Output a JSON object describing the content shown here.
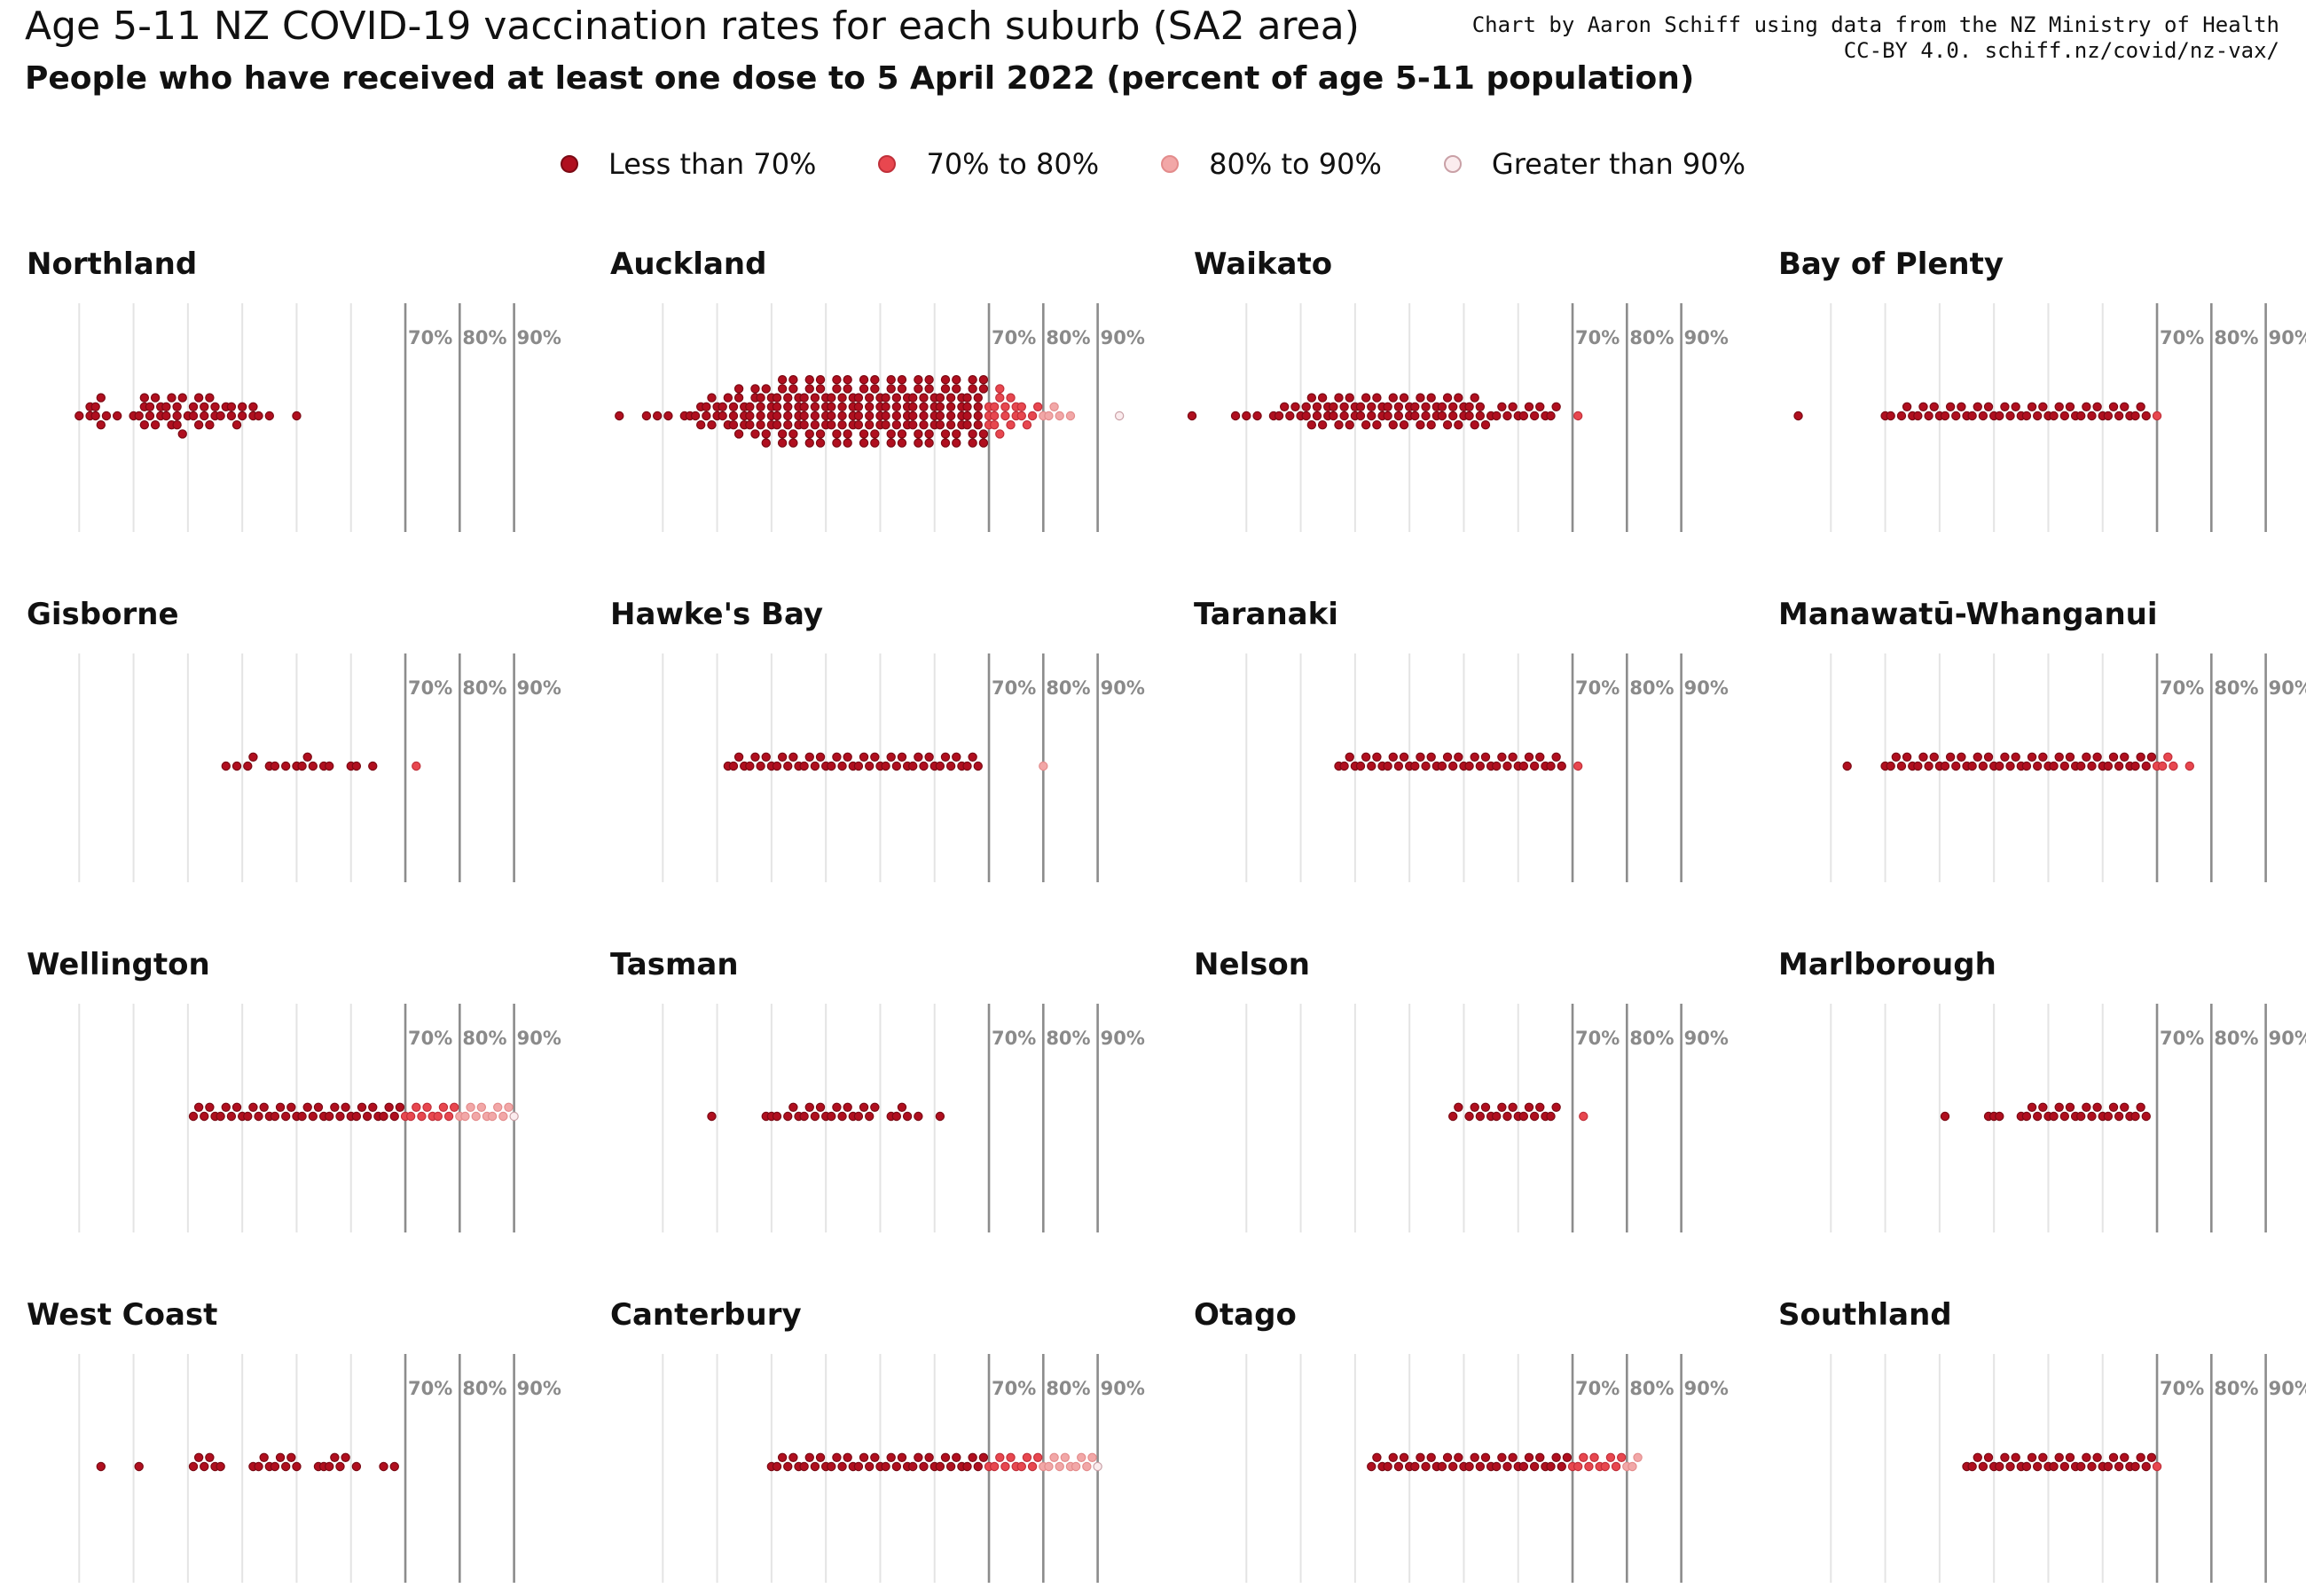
{
  "title": "Age 5-11 NZ COVID-19 vaccination rates for each suburb (SA2 area)",
  "subtitle": "People who have received at least one dose to 5 April 2022 (percent of age 5-11 population)",
  "credit": {
    "line1": "Chart by Aaron Schiff using data from the NZ Ministry of Health",
    "line2": "CC-BY 4.0. schiff.nz/covid/nz-vax/"
  },
  "legend": [
    {
      "label": "Less than 70%",
      "color": "#b00f1f",
      "border": "#7a0a14"
    },
    {
      "label": "70% to 80%",
      "color": "#e8474f",
      "border": "#c0303a"
    },
    {
      "label": "80% to 90%",
      "color": "#f2a7a7",
      "border": "#e38c8c"
    },
    {
      "label": "Greater than 90%",
      "color": "#fbecee",
      "border": "#c9a0a6"
    }
  ],
  "chart_data": {
    "type": "scatter",
    "description_units": "percent of age 5-11 population vaccinated (at least one dose) per SA2 area",
    "reference_lines": [
      70,
      80,
      90
    ],
    "reference_labels": [
      "70%",
      "80%",
      "90%"
    ],
    "xlim": [
      0,
      93
    ],
    "grid": true,
    "facets": [
      {
        "name": "Northland",
        "values": [
          10,
          12,
          12,
          13,
          13,
          14,
          14,
          15,
          17,
          20,
          21,
          22,
          22,
          22,
          23,
          23,
          24,
          24,
          25,
          25,
          26,
          26,
          27,
          27,
          28,
          28,
          28,
          29,
          29,
          30,
          31,
          31,
          32,
          32,
          33,
          33,
          34,
          34,
          35,
          35,
          36,
          37,
          38,
          38,
          39,
          40,
          40,
          42,
          42,
          43,
          45,
          50
        ]
      },
      {
        "name": "Auckland",
        "values": [
          2,
          7,
          9,
          11,
          14,
          15,
          16,
          17,
          17,
          18,
          18,
          19,
          19,
          20,
          20,
          21,
          21,
          22,
          22,
          23,
          23,
          23,
          24,
          24,
          24,
          25,
          25,
          25,
          26,
          26,
          26,
          27,
          27,
          27,
          28,
          28,
          28,
          28,
          29,
          29,
          29,
          30,
          30,
          30,
          30,
          31,
          31,
          31,
          31,
          32,
          32,
          32,
          32,
          33,
          33,
          33,
          33,
          34,
          34,
          34,
          34,
          35,
          35,
          35,
          35,
          36,
          36,
          36,
          36,
          37,
          37,
          37,
          37,
          38,
          38,
          38,
          38,
          39,
          39,
          39,
          39,
          40,
          40,
          40,
          40,
          41,
          41,
          41,
          41,
          42,
          42,
          42,
          42,
          43,
          43,
          43,
          43,
          44,
          44,
          44,
          44,
          45,
          45,
          45,
          45,
          46,
          46,
          46,
          46,
          47,
          47,
          47,
          47,
          48,
          48,
          48,
          48,
          49,
          49,
          49,
          49,
          50,
          50,
          50,
          50,
          51,
          51,
          51,
          51,
          52,
          52,
          52,
          52,
          53,
          53,
          53,
          53,
          54,
          54,
          54,
          54,
          55,
          55,
          55,
          55,
          56,
          56,
          56,
          56,
          57,
          57,
          57,
          57,
          58,
          58,
          58,
          58,
          59,
          59,
          59,
          59,
          60,
          60,
          60,
          60,
          61,
          61,
          61,
          61,
          62,
          62,
          62,
          62,
          63,
          63,
          63,
          63,
          64,
          64,
          64,
          64,
          65,
          65,
          65,
          65,
          66,
          66,
          66,
          66,
          67,
          67,
          67,
          67,
          68,
          68,
          68,
          68,
          69,
          69,
          69,
          69,
          70,
          70,
          70,
          71,
          71,
          71,
          72,
          72,
          72,
          73,
          73,
          74,
          74,
          75,
          75,
          76,
          76,
          77,
          78,
          79,
          80,
          81,
          82,
          83,
          85,
          94
        ]
      },
      {
        "name": "Waikato",
        "values": [
          0,
          8,
          10,
          12,
          15,
          16,
          17,
          18,
          19,
          20,
          21,
          21,
          22,
          22,
          23,
          23,
          24,
          24,
          25,
          25,
          26,
          26,
          27,
          27,
          28,
          28,
          29,
          29,
          30,
          30,
          31,
          31,
          32,
          32,
          33,
          33,
          34,
          34,
          35,
          35,
          36,
          36,
          37,
          37,
          38,
          38,
          39,
          39,
          40,
          40,
          41,
          41,
          42,
          42,
          43,
          43,
          44,
          44,
          45,
          45,
          46,
          46,
          47,
          47,
          48,
          48,
          49,
          49,
          50,
          50,
          51,
          51,
          52,
          52,
          53,
          53,
          54,
          55,
          56,
          57,
          58,
          59,
          60,
          61,
          62,
          63,
          64,
          65,
          66,
          67,
          71
        ]
      },
      {
        "name": "Bay of Plenty",
        "values": [
          4,
          20,
          21,
          23,
          24,
          25,
          26,
          27,
          28,
          29,
          30,
          31,
          32,
          33,
          34,
          35,
          36,
          37,
          38,
          39,
          40,
          41,
          42,
          43,
          44,
          45,
          46,
          47,
          48,
          49,
          50,
          51,
          52,
          53,
          54,
          55,
          56,
          57,
          58,
          59,
          60,
          61,
          62,
          63,
          64,
          65,
          66,
          67,
          68,
          70
        ]
      },
      {
        "name": "Gisborne",
        "values": [
          37,
          39,
          41,
          42,
          45,
          46,
          48,
          50,
          51,
          52,
          53,
          55,
          56,
          60,
          61,
          64,
          72
        ]
      },
      {
        "name": "Hawke's Bay",
        "values": [
          22,
          23,
          24,
          25,
          26,
          27,
          28,
          29,
          30,
          31,
          32,
          33,
          34,
          35,
          36,
          37,
          38,
          39,
          40,
          41,
          42,
          43,
          44,
          45,
          46,
          47,
          48,
          49,
          50,
          51,
          52,
          53,
          54,
          55,
          56,
          57,
          58,
          59,
          60,
          61,
          62,
          63,
          64,
          65,
          66,
          67,
          68,
          80
        ]
      },
      {
        "name": "Taranaki",
        "values": [
          27,
          28,
          29,
          30,
          31,
          32,
          33,
          34,
          35,
          36,
          37,
          38,
          39,
          40,
          41,
          42,
          43,
          44,
          45,
          46,
          47,
          48,
          49,
          50,
          51,
          52,
          53,
          54,
          55,
          56,
          57,
          58,
          59,
          60,
          61,
          62,
          63,
          64,
          65,
          66,
          67,
          68,
          71
        ]
      },
      {
        "name": "Manawatū-Whanganui",
        "values": [
          13,
          20,
          21,
          22,
          23,
          24,
          25,
          26,
          27,
          28,
          29,
          30,
          31,
          32,
          33,
          34,
          35,
          36,
          37,
          38,
          39,
          40,
          41,
          42,
          43,
          44,
          45,
          46,
          47,
          48,
          49,
          50,
          51,
          52,
          53,
          54,
          55,
          56,
          57,
          58,
          59,
          60,
          61,
          62,
          63,
          64,
          65,
          66,
          67,
          68,
          69,
          70,
          71,
          72,
          73,
          76
        ]
      },
      {
        "name": "Wellington",
        "values": [
          31,
          32,
          33,
          34,
          35,
          36,
          37,
          38,
          39,
          40,
          41,
          42,
          43,
          44,
          45,
          46,
          47,
          48,
          49,
          50,
          51,
          52,
          53,
          54,
          55,
          56,
          57,
          58,
          59,
          60,
          61,
          62,
          63,
          64,
          65,
          66,
          67,
          68,
          69,
          70,
          71,
          72,
          73,
          74,
          75,
          76,
          77,
          78,
          79,
          80,
          81,
          82,
          83,
          84,
          85,
          86,
          87,
          88,
          89,
          90
        ]
      },
      {
        "name": "Tasman",
        "values": [
          19,
          29,
          30,
          31,
          33,
          34,
          35,
          36,
          37,
          38,
          39,
          40,
          41,
          42,
          43,
          44,
          45,
          46,
          47,
          48,
          49,
          52,
          53,
          54,
          55,
          57,
          61
        ]
      },
      {
        "name": "Nelson",
        "values": [
          48,
          49,
          51,
          52,
          53,
          54,
          55,
          56,
          57,
          58,
          59,
          60,
          61,
          62,
          63,
          64,
          65,
          66,
          67,
          72
        ]
      },
      {
        "name": "Marlborough",
        "values": [
          31,
          39,
          40,
          41,
          45,
          46,
          47,
          48,
          49,
          50,
          51,
          52,
          53,
          54,
          55,
          56,
          57,
          58,
          59,
          60,
          61,
          62,
          63,
          64,
          65,
          66,
          67,
          68
        ]
      },
      {
        "name": "West Coast",
        "values": [
          14,
          21,
          31,
          32,
          33,
          34,
          35,
          36,
          42,
          43,
          44,
          45,
          46,
          47,
          48,
          49,
          50,
          54,
          55,
          56,
          57,
          58,
          59,
          61,
          66,
          68
        ]
      },
      {
        "name": "Canterbury",
        "values": [
          30,
          31,
          32,
          33,
          34,
          35,
          36,
          37,
          38,
          39,
          40,
          41,
          42,
          43,
          44,
          45,
          46,
          47,
          48,
          49,
          50,
          51,
          52,
          53,
          54,
          55,
          56,
          57,
          58,
          59,
          60,
          61,
          62,
          63,
          64,
          65,
          66,
          67,
          68,
          69,
          70,
          71,
          72,
          73,
          74,
          75,
          76,
          77,
          78,
          79,
          80,
          81,
          82,
          83,
          84,
          85,
          86,
          87,
          88,
          89,
          90
        ]
      },
      {
        "name": "Otago",
        "values": [
          33,
          34,
          35,
          36,
          37,
          38,
          39,
          40,
          41,
          42,
          43,
          44,
          45,
          46,
          47,
          48,
          49,
          50,
          51,
          52,
          53,
          54,
          55,
          56,
          57,
          58,
          59,
          60,
          61,
          62,
          63,
          64,
          65,
          66,
          67,
          68,
          69,
          70,
          71,
          72,
          73,
          74,
          75,
          76,
          77,
          78,
          79,
          80,
          81,
          82
        ]
      },
      {
        "name": "Southland",
        "values": [
          35,
          36,
          37,
          38,
          39,
          40,
          41,
          42,
          43,
          44,
          45,
          46,
          47,
          48,
          49,
          50,
          51,
          52,
          53,
          54,
          55,
          56,
          57,
          58,
          59,
          60,
          61,
          62,
          63,
          64,
          65,
          66,
          67,
          68,
          69,
          70
        ]
      }
    ]
  }
}
